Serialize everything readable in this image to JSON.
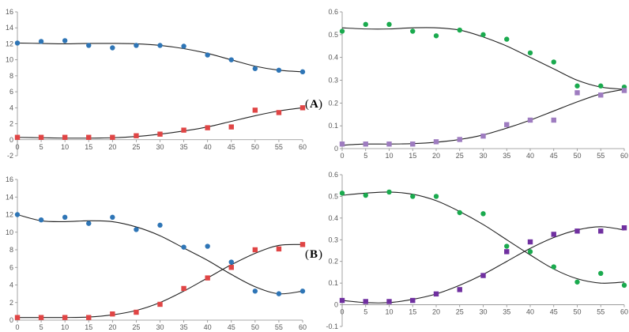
{
  "labels": {
    "A": {
      "open": "(",
      "letter": "A",
      "close": ")"
    },
    "B": {
      "open": "(",
      "letter": "B",
      "close": ")"
    }
  },
  "colors": {
    "blue": "#2E75B6",
    "red": "#E04545",
    "green": "#1AAA4E",
    "purple_light": "#9E7CC0",
    "purple": "#7030A0",
    "axis": "#8C8C8C",
    "fit": "#222222"
  },
  "chart_data": [
    {
      "type": "scatter",
      "panel": "A-left",
      "x_ticks": [
        0,
        5,
        10,
        15,
        20,
        25,
        30,
        35,
        40,
        45,
        50,
        55,
        60
      ],
      "y_ticks": [
        -2,
        0,
        2,
        4,
        6,
        8,
        10,
        12,
        14,
        16
      ],
      "xlim": [
        0,
        60
      ],
      "ylim": [
        -2,
        16
      ],
      "grid": false,
      "series": [
        {
          "color": "blue",
          "marker": "circle",
          "x": [
            0,
            5,
            10,
            15,
            20,
            25,
            30,
            35,
            40,
            45,
            50,
            55,
            60
          ],
          "y": [
            12.1,
            12.3,
            12.4,
            11.8,
            11.5,
            11.8,
            11.8,
            11.7,
            10.6,
            10.0,
            8.9,
            8.7,
            8.5
          ],
          "fit": [
            [
              0,
              12.1
            ],
            [
              5,
              12.05
            ],
            [
              10,
              12.0
            ],
            [
              15,
              12.05
            ],
            [
              20,
              12.05
            ],
            [
              25,
              12.0
            ],
            [
              30,
              11.8
            ],
            [
              35,
              11.4
            ],
            [
              40,
              10.8
            ],
            [
              45,
              10.0
            ],
            [
              50,
              9.2
            ],
            [
              55,
              8.7
            ],
            [
              60,
              8.5
            ]
          ]
        },
        {
          "color": "red",
          "marker": "square",
          "x": [
            0,
            5,
            10,
            15,
            20,
            25,
            30,
            35,
            40,
            45,
            50,
            55,
            60
          ],
          "y": [
            0.3,
            0.3,
            0.3,
            0.3,
            0.3,
            0.5,
            0.7,
            1.2,
            1.5,
            1.6,
            3.7,
            3.4,
            4.0
          ],
          "fit": [
            [
              0,
              0.3
            ],
            [
              5,
              0.25
            ],
            [
              10,
              0.2
            ],
            [
              15,
              0.2
            ],
            [
              20,
              0.25
            ],
            [
              25,
              0.4
            ],
            [
              30,
              0.7
            ],
            [
              35,
              1.1
            ],
            [
              40,
              1.6
            ],
            [
              45,
              2.3
            ],
            [
              50,
              3.0
            ],
            [
              55,
              3.6
            ],
            [
              60,
              4.0
            ]
          ]
        }
      ]
    },
    {
      "type": "scatter",
      "panel": "A-right",
      "x_ticks": [
        0,
        5,
        10,
        15,
        20,
        25,
        30,
        35,
        40,
        45,
        50,
        55,
        60
      ],
      "y_ticks": [
        0,
        0.1,
        0.2,
        0.3,
        0.4,
        0.5,
        0.6
      ],
      "xlim": [
        0,
        60
      ],
      "ylim": [
        0,
        0.6
      ],
      "grid": false,
      "series": [
        {
          "color": "green",
          "marker": "circle",
          "x": [
            0,
            5,
            10,
            15,
            20,
            25,
            30,
            35,
            40,
            45,
            50,
            55,
            60
          ],
          "y": [
            0.515,
            0.545,
            0.545,
            0.515,
            0.495,
            0.52,
            0.5,
            0.48,
            0.42,
            0.38,
            0.275,
            0.275,
            0.27
          ],
          "fit": [
            [
              0,
              0.53
            ],
            [
              5,
              0.525
            ],
            [
              10,
              0.525
            ],
            [
              15,
              0.53
            ],
            [
              20,
              0.53
            ],
            [
              25,
              0.52
            ],
            [
              30,
              0.49
            ],
            [
              35,
              0.45
            ],
            [
              40,
              0.4
            ],
            [
              45,
              0.35
            ],
            [
              50,
              0.3
            ],
            [
              55,
              0.27
            ],
            [
              60,
              0.26
            ]
          ]
        },
        {
          "color": "purple_light",
          "marker": "square",
          "x": [
            0,
            5,
            10,
            15,
            20,
            25,
            30,
            35,
            40,
            45,
            50,
            55,
            60
          ],
          "y": [
            0.02,
            0.02,
            0.02,
            0.02,
            0.03,
            0.04,
            0.055,
            0.105,
            0.125,
            0.125,
            0.245,
            0.235,
            0.255
          ],
          "fit": [
            [
              0,
              0.015
            ],
            [
              5,
              0.02
            ],
            [
              10,
              0.02
            ],
            [
              15,
              0.022
            ],
            [
              20,
              0.028
            ],
            [
              25,
              0.04
            ],
            [
              30,
              0.06
            ],
            [
              35,
              0.09
            ],
            [
              40,
              0.125
            ],
            [
              45,
              0.165
            ],
            [
              50,
              0.205
            ],
            [
              55,
              0.24
            ],
            [
              60,
              0.26
            ]
          ]
        }
      ]
    },
    {
      "type": "scatter",
      "panel": "B-left",
      "x_ticks": [
        0,
        5,
        10,
        15,
        20,
        25,
        30,
        35,
        40,
        45,
        50,
        55,
        60
      ],
      "y_ticks": [
        0,
        2,
        4,
        6,
        8,
        10,
        12,
        14,
        16
      ],
      "xlim": [
        0,
        60
      ],
      "ylim": [
        0,
        16
      ],
      "grid": false,
      "series": [
        {
          "color": "blue",
          "marker": "circle",
          "x": [
            0,
            5,
            10,
            15,
            20,
            25,
            30,
            35,
            40,
            45,
            50,
            55,
            60
          ],
          "y": [
            12.0,
            11.4,
            11.7,
            11.0,
            11.7,
            10.3,
            10.8,
            8.3,
            8.4,
            6.6,
            3.3,
            3.0,
            3.3
          ],
          "fit": [
            [
              0,
              12.0
            ],
            [
              5,
              11.3
            ],
            [
              10,
              11.2
            ],
            [
              15,
              11.3
            ],
            [
              20,
              11.2
            ],
            [
              25,
              10.6
            ],
            [
              30,
              9.6
            ],
            [
              35,
              8.2
            ],
            [
              40,
              6.8
            ],
            [
              45,
              5.2
            ],
            [
              50,
              3.8
            ],
            [
              55,
              3.0
            ],
            [
              60,
              3.3
            ]
          ]
        },
        {
          "color": "red",
          "marker": "square",
          "x": [
            0,
            5,
            10,
            15,
            20,
            25,
            30,
            35,
            40,
            45,
            50,
            55,
            60
          ],
          "y": [
            0.3,
            0.3,
            0.3,
            0.3,
            0.7,
            0.9,
            1.8,
            3.6,
            4.8,
            6.0,
            8.0,
            8.1,
            8.6
          ],
          "fit": [
            [
              0,
              0.3
            ],
            [
              5,
              0.3
            ],
            [
              10,
              0.3
            ],
            [
              15,
              0.35
            ],
            [
              20,
              0.6
            ],
            [
              25,
              1.1
            ],
            [
              30,
              2.0
            ],
            [
              35,
              3.3
            ],
            [
              40,
              4.8
            ],
            [
              45,
              6.3
            ],
            [
              50,
              7.6
            ],
            [
              55,
              8.5
            ],
            [
              60,
              8.6
            ]
          ]
        }
      ]
    },
    {
      "type": "scatter",
      "panel": "B-right",
      "x_ticks": [
        0,
        5,
        10,
        15,
        20,
        25,
        30,
        35,
        40,
        45,
        50,
        55,
        60
      ],
      "y_ticks": [
        -0.1,
        0,
        0.1,
        0.2,
        0.3,
        0.4,
        0.5,
        0.6
      ],
      "xlim": [
        0,
        60
      ],
      "ylim": [
        -0.1,
        0.6
      ],
      "grid": false,
      "series": [
        {
          "color": "green",
          "marker": "circle",
          "x": [
            0,
            5,
            10,
            15,
            20,
            25,
            30,
            35,
            40,
            45,
            50,
            55,
            60
          ],
          "y": [
            0.515,
            0.505,
            0.52,
            0.5,
            0.5,
            0.425,
            0.42,
            0.27,
            0.245,
            0.175,
            0.105,
            0.145,
            0.09
          ],
          "fit": [
            [
              0,
              0.505
            ],
            [
              5,
              0.515
            ],
            [
              10,
              0.52
            ],
            [
              15,
              0.51
            ],
            [
              20,
              0.48
            ],
            [
              25,
              0.43
            ],
            [
              30,
              0.37
            ],
            [
              35,
              0.3
            ],
            [
              40,
              0.23
            ],
            [
              45,
              0.165
            ],
            [
              50,
              0.12
            ],
            [
              55,
              0.1
            ],
            [
              60,
              0.105
            ]
          ]
        },
        {
          "color": "purple",
          "marker": "square",
          "x": [
            0,
            5,
            10,
            15,
            20,
            25,
            30,
            35,
            40,
            45,
            50,
            55,
            60
          ],
          "y": [
            0.02,
            0.015,
            0.015,
            0.02,
            0.05,
            0.07,
            0.135,
            0.245,
            0.29,
            0.325,
            0.34,
            0.34,
            0.355
          ],
          "fit": [
            [
              0,
              0.02
            ],
            [
              5,
              0.01
            ],
            [
              10,
              0.01
            ],
            [
              15,
              0.025
            ],
            [
              20,
              0.05
            ],
            [
              25,
              0.09
            ],
            [
              30,
              0.14
            ],
            [
              35,
              0.2
            ],
            [
              40,
              0.26
            ],
            [
              45,
              0.31
            ],
            [
              50,
              0.345
            ],
            [
              55,
              0.36
            ],
            [
              60,
              0.345
            ]
          ]
        }
      ]
    }
  ]
}
